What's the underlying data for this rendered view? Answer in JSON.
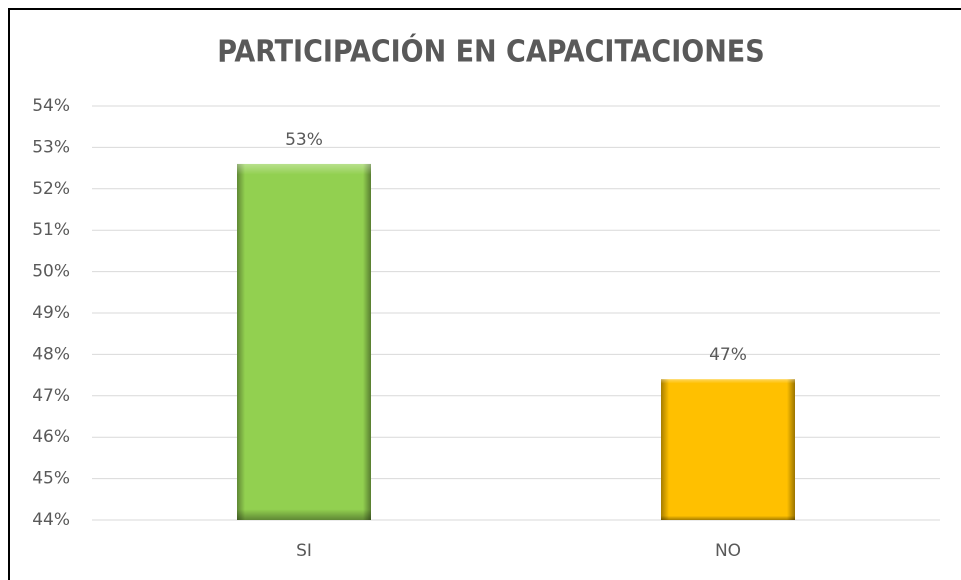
{
  "chart_data": {
    "type": "bar",
    "title": "PARTICIPACIÓN EN CAPACITACIONES",
    "categories": [
      "SI",
      "NO"
    ],
    "values": [
      52.6,
      47.4
    ],
    "value_labels": [
      "53%",
      "47%"
    ],
    "colors": [
      "#92d050",
      "#ffc000"
    ],
    "ylim": [
      44,
      54
    ],
    "yticks": [
      {
        "value": 44,
        "label": "44%"
      },
      {
        "value": 45,
        "label": "45%"
      },
      {
        "value": 46,
        "label": "46%"
      },
      {
        "value": 47,
        "label": "47%"
      },
      {
        "value": 48,
        "label": "48%"
      },
      {
        "value": 49,
        "label": "49%"
      },
      {
        "value": 50,
        "label": "50%"
      },
      {
        "value": 51,
        "label": "51%"
      },
      {
        "value": 52,
        "label": "52%"
      },
      {
        "value": 53,
        "label": "53%"
      },
      {
        "value": 54,
        "label": "54%"
      }
    ],
    "grid": true
  }
}
